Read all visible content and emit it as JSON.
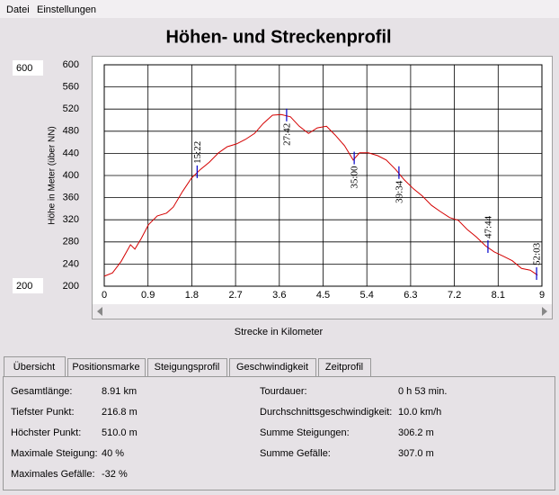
{
  "menu": [
    "Datei",
    "Einstellungen"
  ],
  "range_inputs": {
    "max": "600",
    "min": "200"
  },
  "chart_data": {
    "type": "line",
    "title": "Höhen- und Streckenprofil",
    "y_label": "Höhe in Meter (über NN)",
    "x_label": "Strecke in Kilometer",
    "x": [
      0,
      0.17,
      0.35,
      0.54,
      0.63,
      0.76,
      0.91,
      1.09,
      1.28,
      1.42,
      1.61,
      1.79,
      1.98,
      2.16,
      2.35,
      2.53,
      2.72,
      2.9,
      3.09,
      3.27,
      3.46,
      3.64,
      3.83,
      4.01,
      4.2,
      4.38,
      4.57,
      4.75,
      4.94,
      5.12,
      5.25,
      5.43,
      5.62,
      5.8,
      5.99,
      6.17,
      6.36,
      6.54,
      6.73,
      6.91,
      7.1,
      7.28,
      7.47,
      7.65,
      7.84,
      8.02,
      8.21,
      8.39,
      8.58,
      8.76,
      8.91
    ],
    "values": [
      218,
      224,
      245,
      275,
      267,
      286,
      311,
      327,
      332,
      343,
      371,
      395,
      411,
      424,
      441,
      452,
      457,
      465,
      476,
      494,
      509,
      510,
      506,
      489,
      476,
      486,
      489,
      473,
      454,
      428,
      441,
      441,
      436,
      428,
      411,
      392,
      376,
      363,
      346,
      335,
      324,
      319,
      302,
      289,
      273,
      262,
      254,
      246,
      232,
      229,
      220
    ],
    "color": "#d40000",
    "markers": [
      {
        "x": 1.91,
        "label": "15:22",
        "position": "above"
      },
      {
        "x": 3.75,
        "label": "27:42",
        "position": "below"
      },
      {
        "x": 5.14,
        "label": "35:00",
        "position": "below"
      },
      {
        "x": 6.06,
        "label": "39:34",
        "position": "below"
      },
      {
        "x": 7.89,
        "label": "47:44",
        "position": "above"
      },
      {
        "x": 8.89,
        "label": "52:03",
        "position": "above"
      }
    ],
    "marker_color": "#0000cc",
    "xlim": [
      0,
      9
    ],
    "xticks": [
      0,
      0.9,
      1.8,
      2.7,
      3.6,
      4.5,
      5.4,
      6.3,
      7.2,
      8.1,
      9
    ],
    "ylim": [
      200,
      600
    ],
    "yticks": [
      200,
      240,
      280,
      320,
      360,
      400,
      440,
      480,
      520,
      560,
      600
    ],
    "grid": true
  },
  "tabs": {
    "items": [
      "Übersicht",
      "Positionsmarke",
      "Steigungsprofil",
      "Geschwindigkeit",
      "Zeitprofil"
    ],
    "active": 0
  },
  "summary": {
    "left": [
      [
        "Gesamtlänge:",
        "8.91 km"
      ],
      [
        "Tiefster Punkt:",
        "216.8 m"
      ],
      [
        "Höchster Punkt:",
        "510.0 m"
      ],
      [
        "Maximale Steigung:",
        "40 %"
      ],
      [
        "Maximales Gefälle:",
        "-32 %"
      ]
    ],
    "right": [
      [
        "Tourdauer:",
        "0 h 53 min."
      ],
      [
        "Durchschnittsgeschwindigkeit:",
        "10.0 km/h"
      ],
      [
        "Summe Steigungen:",
        "306.2 m"
      ],
      [
        "Summe Gefälle:",
        "307.0 m"
      ]
    ]
  }
}
